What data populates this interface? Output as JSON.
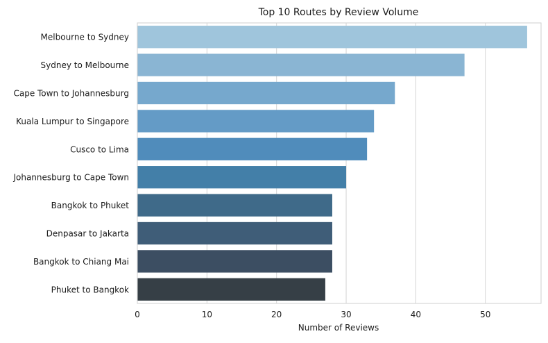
{
  "chart_data": {
    "type": "bar",
    "orientation": "horizontal",
    "title": "Top 10 Routes by Review Volume",
    "xlabel": "Number of Reviews",
    "ylabel": "",
    "xlim": [
      0,
      58
    ],
    "xticks": [
      0,
      10,
      20,
      30,
      40,
      50
    ],
    "grid": true,
    "categories": [
      "Melbourne to Sydney",
      "Sydney to Melbourne",
      "Cape Town to Johannesburg",
      "Kuala Lumpur to Singapore",
      "Cusco to Lima",
      "Johannesburg to Cape Town",
      "Bangkok to Phuket",
      "Denpasar to Jakarta",
      "Bangkok to Chiang Mai",
      "Phuket to Bangkok"
    ],
    "values": [
      56,
      47,
      37,
      34,
      33,
      30,
      28,
      28,
      28,
      27
    ],
    "colors": [
      "#9fc5dc",
      "#8ab5d3",
      "#76a8cd",
      "#649bc6",
      "#508cbb",
      "#437fa8",
      "#3f6a89",
      "#3f5d78",
      "#3c4e62",
      "#363f46"
    ]
  }
}
